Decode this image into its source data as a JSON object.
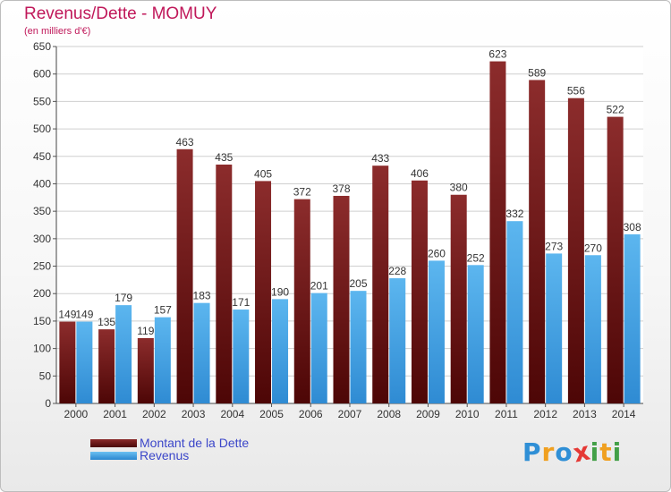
{
  "chart_data": {
    "type": "bar",
    "title": "Revenus/Dette - MOMUY",
    "subtitle": "(en milliers d'€)",
    "categories": [
      "2000",
      "2001",
      "2002",
      "2003",
      "2004",
      "2005",
      "2006",
      "2007",
      "2008",
      "2009",
      "2010",
      "2011",
      "2012",
      "2013",
      "2014"
    ],
    "series": [
      {
        "name": "Montant de la Dette",
        "color": "#7a1e1e",
        "values": [
          149,
          135,
          119,
          463,
          435,
          405,
          372,
          378,
          433,
          406,
          380,
          623,
          589,
          556,
          522
        ]
      },
      {
        "name": "Revenus",
        "color": "#3a9ee4",
        "values": [
          149,
          179,
          157,
          183,
          171,
          190,
          201,
          205,
          228,
          260,
          252,
          332,
          273,
          270,
          308
        ]
      }
    ],
    "ylim": [
      0,
      650
    ],
    "yticks": [
      0,
      50,
      100,
      150,
      200,
      250,
      300,
      350,
      400,
      450,
      500,
      550,
      600,
      650
    ],
    "grid": true,
    "legend_position": "bottom-left"
  },
  "logo": {
    "text": "Proxiti",
    "letters": [
      {
        "ch": "P",
        "color": "#2f8fd6"
      },
      {
        "ch": "r",
        "color": "#f0a020"
      },
      {
        "ch": "o",
        "color": "#2f8fd6"
      },
      {
        "ch": "x",
        "color": "#e53935"
      },
      {
        "ch": "i",
        "color": "#43a047"
      },
      {
        "ch": "t",
        "color": "#f0a020"
      },
      {
        "ch": "i",
        "color": "#43a047"
      }
    ]
  }
}
